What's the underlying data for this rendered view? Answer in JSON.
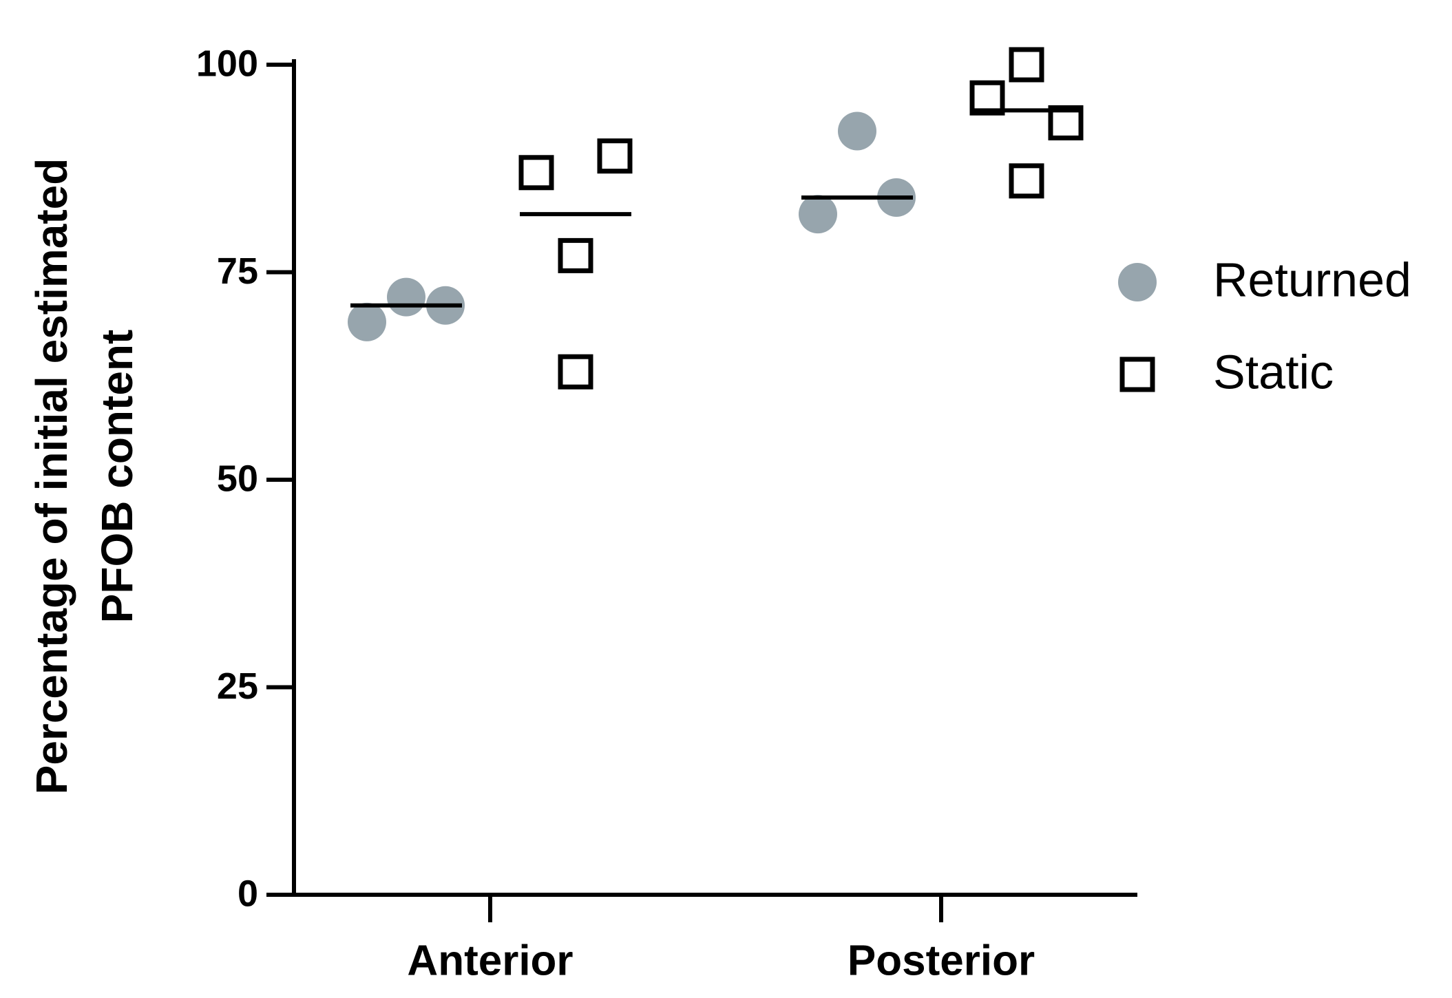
{
  "chart_data": {
    "type": "scatter",
    "y_label": [
      "Percentage of initial estimated",
      "PFOB content"
    ],
    "categories": [
      "Anterior",
      "Posterior"
    ],
    "series": [
      {
        "name": "Returned",
        "color": "#97a5ad",
        "marker": "circle",
        "values": [
          [
            69,
            72,
            71
          ],
          [
            82,
            92,
            84
          ]
        ],
        "means": [
          71,
          84
        ]
      },
      {
        "name": "Static",
        "color": "#000000",
        "marker": "square",
        "values": [
          [
            87,
            77,
            63,
            89
          ],
          [
            96,
            100,
            86,
            93
          ]
        ],
        "means": [
          82,
          94.5
        ]
      }
    ],
    "ylim": [
      0,
      100
    ],
    "yticks": [
      0,
      25,
      50,
      75,
      100
    ],
    "grid": false
  }
}
